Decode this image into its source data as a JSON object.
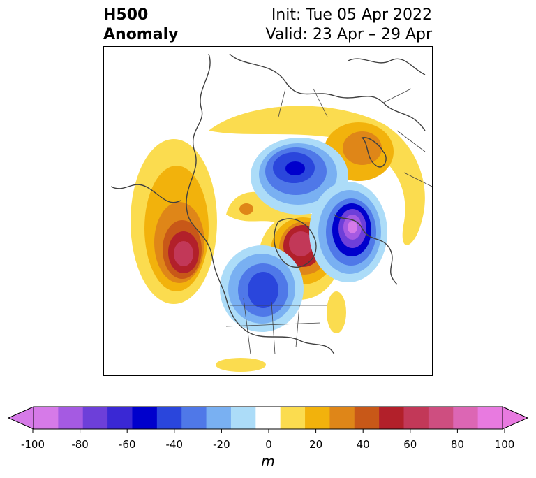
{
  "title": {
    "left_line1": "H500",
    "left_line2": "Anomaly",
    "right_line1": "Init: Tue 05 Apr 2022",
    "right_line2": "Valid: 23 Apr – 29 Apr"
  },
  "colorbar": {
    "units": "m",
    "tick_labels": [
      "-100",
      "-80",
      "-60",
      "-40",
      "-20",
      "0",
      "20",
      "40",
      "60",
      "80",
      "100"
    ],
    "colors": [
      "#d67ae8",
      "#a55ae2",
      "#6d3fd9",
      "#3a28d4",
      "#0000cc",
      "#2a46dc",
      "#4f78e8",
      "#79b0f2",
      "#acdcf8",
      "#ffffff",
      "#fbdc4f",
      "#f2b20c",
      "#df8618",
      "#c85818",
      "#b2202a",
      "#c23858",
      "#ce4e80",
      "#dc66b4",
      "#e87ae0"
    ],
    "extend_low_color": "#d67ae8",
    "extend_high_color": "#e87ae0"
  },
  "map": {
    "projection": "north polar stereographic",
    "region": "Northern Hemisphere"
  }
}
